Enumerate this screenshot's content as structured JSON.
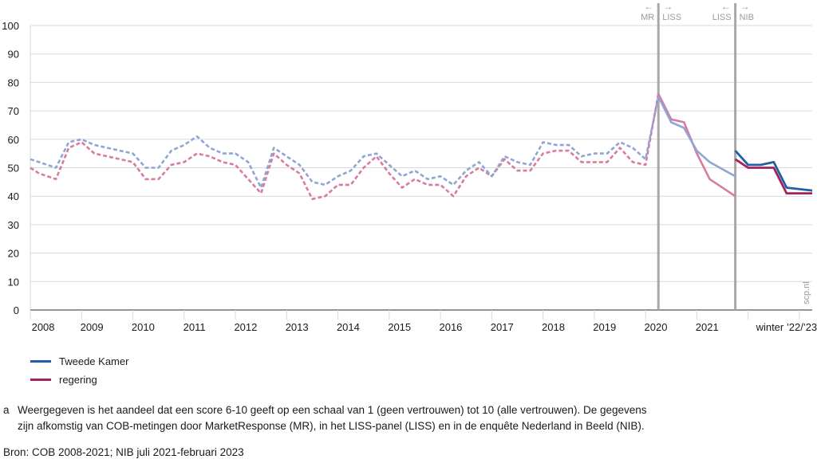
{
  "colors": {
    "tweede_kamer_solid": "#1f5fa3",
    "tweede_kamer_dashed": "#8fa6d4",
    "regering_solid": "#a6205e",
    "regering_dashed": "#d97aa0",
    "grid": "#d9d9d9",
    "axis": "#555555",
    "divider": "#a8a8a8",
    "annotation": "#9a9a9a"
  },
  "legend": {
    "tweede_kamer": "Tweede Kamer",
    "regering": "regering"
  },
  "footnote": {
    "marker": "a",
    "line1": "Weergegeven is het aandeel dat een score 6-10 geeft op een schaal van 1 (geen vertrouwen) tot 10 (alle vertrouwen). De gegevens",
    "line2": "zijn afkomstig van COB-metingen door MarketResponse (MR), in het LISS-panel (LISS) en in de enquête Nederland in Beeld (NIB)."
  },
  "source": "Bron: COB 2008-2021; NIB juli 2021-februari 2023",
  "watermark": "scp.nl",
  "chart_data": {
    "type": "line",
    "ylim": [
      0,
      100
    ],
    "yticks": [
      0,
      10,
      20,
      30,
      40,
      50,
      60,
      70,
      80,
      90,
      100
    ],
    "xlim": [
      2007.75,
      2023.0
    ],
    "xticks": [
      {
        "label": "2008",
        "x": 2008.0
      },
      {
        "label": "2009",
        "x": 2008.95
      },
      {
        "label": "2010",
        "x": 2009.95
      },
      {
        "label": "2011",
        "x": 2010.95
      },
      {
        "label": "2012",
        "x": 2011.95
      },
      {
        "label": "2013",
        "x": 2012.95
      },
      {
        "label": "2014",
        "x": 2013.95
      },
      {
        "label": "2015",
        "x": 2014.95
      },
      {
        "label": "2016",
        "x": 2015.95
      },
      {
        "label": "2017",
        "x": 2016.95
      },
      {
        "label": "2018",
        "x": 2017.95
      },
      {
        "label": "2019",
        "x": 2018.95
      },
      {
        "label": "2020",
        "x": 2019.95
      },
      {
        "label": "2021",
        "x": 2020.95
      },
      {
        "label": "winter ’22/’23",
        "x": 2022.5
      }
    ],
    "dividers": [
      {
        "x": 2020.0,
        "left": "MR",
        "right": "LISS"
      },
      {
        "x": 2021.5,
        "left": "LISS",
        "right": "NIB"
      }
    ],
    "series": [
      {
        "name": "Tweede Kamer",
        "segments": [
          {
            "style": "dashed",
            "points": [
              [
                2007.75,
                53
              ],
              [
                2007.92,
                52
              ],
              [
                2008.25,
                50
              ],
              [
                2008.5,
                59
              ],
              [
                2008.75,
                60
              ],
              [
                2009.0,
                58
              ],
              [
                2009.25,
                57
              ],
              [
                2009.5,
                56
              ],
              [
                2009.75,
                55
              ],
              [
                2010.0,
                50
              ],
              [
                2010.25,
                50
              ],
              [
                2010.5,
                56
              ],
              [
                2010.75,
                58
              ],
              [
                2011.0,
                61
              ],
              [
                2011.25,
                57
              ],
              [
                2011.5,
                55
              ],
              [
                2011.75,
                55
              ],
              [
                2012.0,
                52
              ],
              [
                2012.25,
                43
              ],
              [
                2012.5,
                57
              ],
              [
                2012.75,
                54
              ],
              [
                2013.0,
                51
              ],
              [
                2013.25,
                45
              ],
              [
                2013.5,
                44
              ],
              [
                2013.75,
                47
              ],
              [
                2014.0,
                49
              ],
              [
                2014.25,
                54
              ],
              [
                2014.5,
                55
              ],
              [
                2014.75,
                51
              ],
              [
                2015.0,
                47
              ],
              [
                2015.25,
                49
              ],
              [
                2015.5,
                46
              ],
              [
                2015.75,
                47
              ],
              [
                2016.0,
                44
              ],
              [
                2016.25,
                49
              ],
              [
                2016.5,
                52
              ],
              [
                2016.75,
                47
              ],
              [
                2017.0,
                54
              ],
              [
                2017.25,
                52
              ],
              [
                2017.5,
                51
              ],
              [
                2017.75,
                59
              ],
              [
                2018.0,
                58
              ],
              [
                2018.25,
                58
              ],
              [
                2018.5,
                54
              ],
              [
                2018.75,
                55
              ],
              [
                2019.0,
                55
              ],
              [
                2019.25,
                59
              ],
              [
                2019.5,
                57
              ],
              [
                2019.75,
                53
              ],
              [
                2020.0,
                75
              ]
            ]
          },
          {
            "style": "solid_light",
            "points": [
              [
                2020.0,
                75
              ],
              [
                2020.25,
                66
              ],
              [
                2020.5,
                64
              ],
              [
                2020.75,
                56
              ],
              [
                2021.0,
                52
              ],
              [
                2021.5,
                47
              ]
            ]
          },
          {
            "style": "solid",
            "points": [
              [
                2021.5,
                56
              ],
              [
                2021.75,
                51
              ],
              [
                2022.0,
                51
              ],
              [
                2022.25,
                52
              ],
              [
                2022.5,
                43
              ],
              [
                2023.0,
                42
              ]
            ]
          }
        ]
      },
      {
        "name": "regering",
        "segments": [
          {
            "style": "dashed",
            "points": [
              [
                2007.75,
                50
              ],
              [
                2007.92,
                48
              ],
              [
                2008.25,
                46
              ],
              [
                2008.5,
                57
              ],
              [
                2008.75,
                59
              ],
              [
                2009.0,
                55
              ],
              [
                2009.25,
                54
              ],
              [
                2009.5,
                53
              ],
              [
                2009.75,
                52
              ],
              [
                2010.0,
                46
              ],
              [
                2010.25,
                46
              ],
              [
                2010.5,
                51
              ],
              [
                2010.75,
                52
              ],
              [
                2011.0,
                55
              ],
              [
                2011.25,
                54
              ],
              [
                2011.5,
                52
              ],
              [
                2011.75,
                51
              ],
              [
                2012.0,
                46
              ],
              [
                2012.25,
                41
              ],
              [
                2012.5,
                55
              ],
              [
                2012.75,
                51
              ],
              [
                2013.0,
                48
              ],
              [
                2013.25,
                39
              ],
              [
                2013.5,
                40
              ],
              [
                2013.75,
                44
              ],
              [
                2014.0,
                44
              ],
              [
                2014.25,
                50
              ],
              [
                2014.5,
                54
              ],
              [
                2014.75,
                48
              ],
              [
                2015.0,
                43
              ],
              [
                2015.25,
                46
              ],
              [
                2015.5,
                44
              ],
              [
                2015.75,
                44
              ],
              [
                2016.0,
                40
              ],
              [
                2016.25,
                47
              ],
              [
                2016.5,
                50
              ],
              [
                2016.75,
                47
              ],
              [
                2017.0,
                53
              ],
              [
                2017.25,
                49
              ],
              [
                2017.5,
                49
              ],
              [
                2017.75,
                55
              ],
              [
                2018.0,
                56
              ],
              [
                2018.25,
                56
              ],
              [
                2018.5,
                52
              ],
              [
                2018.75,
                52
              ],
              [
                2019.0,
                52
              ],
              [
                2019.25,
                57
              ],
              [
                2019.5,
                52
              ],
              [
                2019.75,
                51
              ],
              [
                2020.0,
                76
              ]
            ]
          },
          {
            "style": "solid_light",
            "points": [
              [
                2020.0,
                76
              ],
              [
                2020.25,
                67
              ],
              [
                2020.5,
                66
              ],
              [
                2020.75,
                55
              ],
              [
                2021.0,
                46
              ],
              [
                2021.5,
                40
              ]
            ]
          },
          {
            "style": "solid",
            "points": [
              [
                2021.5,
                53
              ],
              [
                2021.75,
                50
              ],
              [
                2022.0,
                50
              ],
              [
                2022.25,
                50
              ],
              [
                2022.5,
                41
              ],
              [
                2023.0,
                41
              ]
            ]
          }
        ]
      }
    ]
  }
}
